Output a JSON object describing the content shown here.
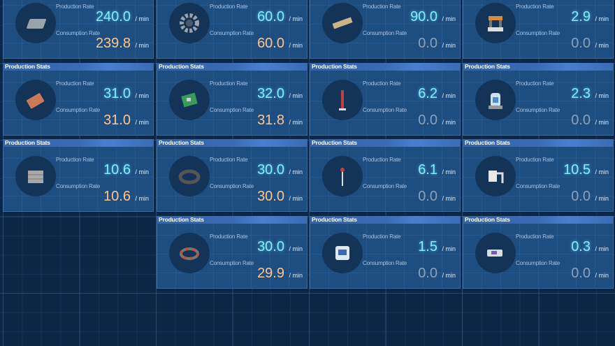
{
  "header_label": "Production Stats",
  "production_label": "Production Rate",
  "consumption_label": "Consumption Rate",
  "unit": "/ min",
  "colors": {
    "production": "#7cf0ff",
    "consumption": "#ffc48a",
    "zero": "#8da0b6"
  },
  "rows": [
    [
      {
        "icon": "iron-ingot-icon",
        "production": "240.0",
        "consumption": "239.8"
      },
      {
        "icon": "gear-icon",
        "production": "60.0",
        "consumption": "60.0"
      },
      {
        "icon": "magnetic-coil-bar-icon",
        "production": "90.0",
        "consumption": "0.0"
      },
      {
        "icon": "machine-assembler-icon",
        "production": "2.9",
        "consumption": "0.0"
      }
    ],
    [
      {
        "icon": "copper-ingot-icon",
        "production": "31.0",
        "consumption": "31.0"
      },
      {
        "icon": "circuit-board-icon",
        "production": "32.0",
        "consumption": "31.8"
      },
      {
        "icon": "tesla-tower-icon",
        "production": "6.2",
        "consumption": "0.0"
      },
      {
        "icon": "matrix-lab-icon",
        "production": "2.3",
        "consumption": "0.0"
      }
    ],
    [
      {
        "icon": "stone-brick-icon",
        "production": "10.6",
        "consumption": "10.6"
      },
      {
        "icon": "magnet-ring-icon",
        "production": "30.0",
        "consumption": "30.0"
      },
      {
        "icon": "wireless-power-tower-icon",
        "production": "6.1",
        "consumption": "0.0"
      },
      {
        "icon": "conveyor-belt-icon",
        "production": "10.5",
        "consumption": "0.0"
      }
    ],
    [
      null,
      {
        "icon": "magnetic-coil-icon",
        "production": "30.0",
        "consumption": "29.9"
      },
      {
        "icon": "smelter-icon",
        "production": "1.5",
        "consumption": "0.0"
      },
      {
        "icon": "sorter-icon",
        "production": "0.3",
        "consumption": "0.0"
      }
    ]
  ]
}
